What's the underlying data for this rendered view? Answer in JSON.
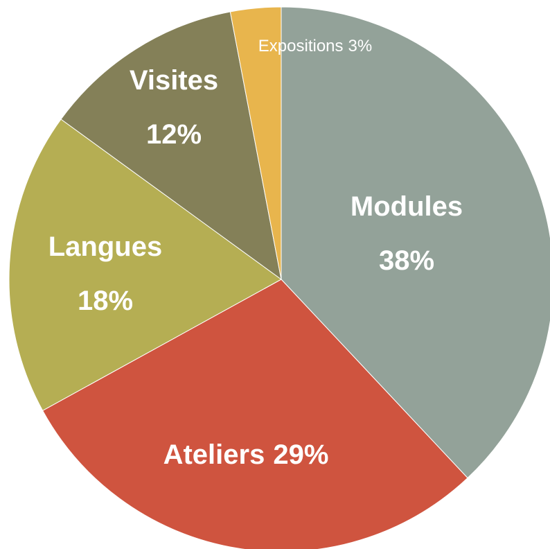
{
  "chart_data": {
    "type": "pie",
    "categories": [
      "Modules",
      "Ateliers",
      "Langues",
      "Visites",
      "Expositions"
    ],
    "values": [
      38,
      29,
      18,
      12,
      3
    ],
    "value_labels": [
      "38%",
      "29%",
      "18%",
      "12%",
      "3%"
    ],
    "colors": [
      "#93a299",
      "#cf543f",
      "#b5ae53",
      "#848058",
      "#e8b54d"
    ]
  }
}
